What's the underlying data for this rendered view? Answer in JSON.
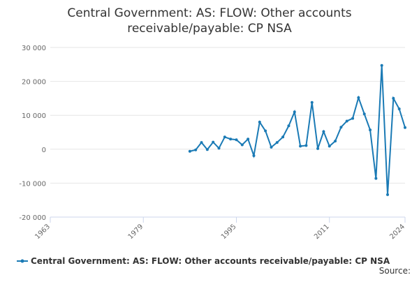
{
  "chart_data": {
    "type": "line",
    "title": "Central Government: AS: FLOW: Other accounts receivable/payable: CP NSA",
    "x": [
      1987,
      1988,
      1989,
      1990,
      1991,
      1992,
      1993,
      1994,
      1995,
      1996,
      1997,
      1998,
      1999,
      2000,
      2001,
      2002,
      2003,
      2004,
      2005,
      2006,
      2007,
      2008,
      2009,
      2010,
      2011,
      2012,
      2013,
      2014,
      2015,
      2016,
      2017,
      2018,
      2019,
      2020,
      2021,
      2022,
      2023,
      2024
    ],
    "series": [
      {
        "name": "Central Government: AS: FLOW: Other accounts receivable/payable: CP NSA",
        "color": "#1a7ab5",
        "values": [
          -600,
          -200,
          2000,
          -100,
          2100,
          300,
          3600,
          3000,
          2800,
          1300,
          3000,
          -1900,
          8000,
          5400,
          600,
          2000,
          3600,
          6900,
          11000,
          900,
          1100,
          13800,
          200,
          5200,
          900,
          2400,
          6500,
          8300,
          9100,
          15200,
          10400,
          5700,
          -8600,
          24700,
          -13400,
          15000,
          11900,
          6400
        ]
      }
    ],
    "xlim": [
      1963,
      2024
    ],
    "xticks": [
      1963,
      1979,
      1995,
      2011,
      2024
    ],
    "ylim": [
      -20000,
      30000
    ],
    "yticks": [
      {
        "value": -20000,
        "label": "-20 000"
      },
      {
        "value": -10000,
        "label": "-10 000"
      },
      {
        "value": 0,
        "label": "0"
      },
      {
        "value": 10000,
        "label": "10 000"
      },
      {
        "value": 20000,
        "label": "20 000"
      },
      {
        "value": 30000,
        "label": "30 000"
      }
    ],
    "grid": true,
    "legend": "bottom",
    "source": "Source:"
  }
}
